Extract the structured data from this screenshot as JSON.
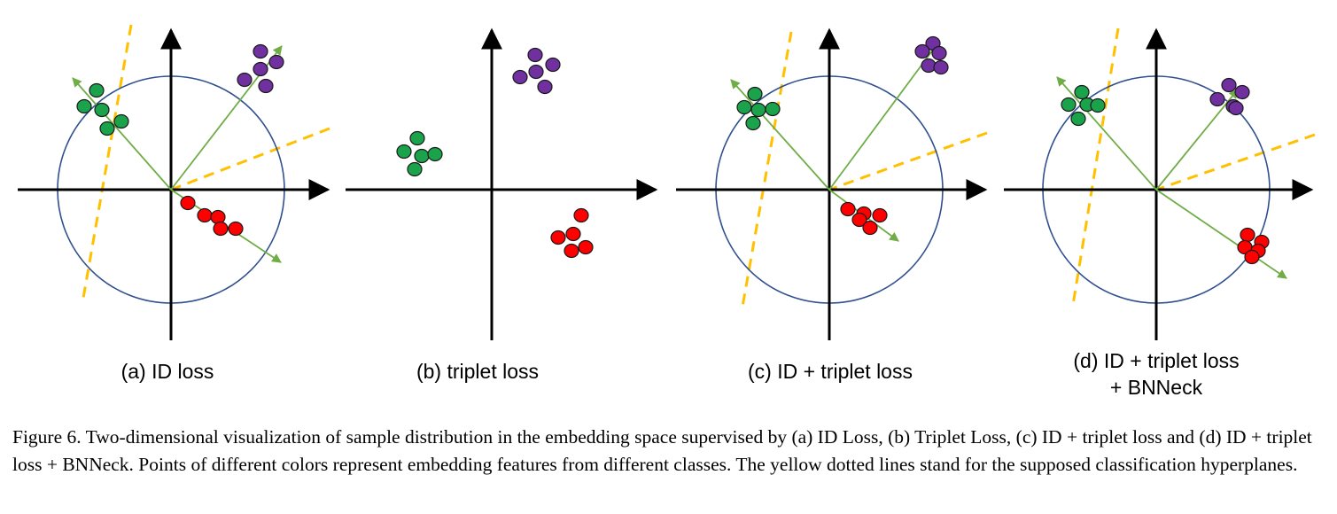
{
  "colors": {
    "axis": "#000000",
    "circle": "#2F4F8F",
    "arrow": "#70AD47",
    "hyperplane": "#FFC000",
    "class_green": "#1AA34A",
    "class_purple": "#7030A0",
    "class_red": "#FF0000"
  },
  "panels": [
    {
      "id": "a",
      "label": [
        "(a) ID loss"
      ],
      "circle": true,
      "arrows": true,
      "hyperplanes": true
    },
    {
      "id": "b",
      "label": [
        "(b) triplet loss"
      ],
      "circle": false,
      "arrows": false,
      "hyperplanes": false
    },
    {
      "id": "c",
      "label": [
        "(c) ID + triplet loss"
      ],
      "circle": true,
      "arrows": true,
      "hyperplanes": true
    },
    {
      "id": "d",
      "label": [
        "(d) ID + triplet loss",
        "+ BNNeck"
      ],
      "circle": true,
      "arrows": true,
      "hyperplanes": true
    }
  ],
  "caption": "Figure 6. Two-dimensional visualization of sample distribution in the embedding space supervised by (a) ID Loss, (b) Triplet Loss, (c) ID + triplet loss and (d) ID + triplet loss + BNNeck. Points of different colors represent embedding features from different classes. The yellow dotted lines stand for the supposed classification hyperplanes."
}
